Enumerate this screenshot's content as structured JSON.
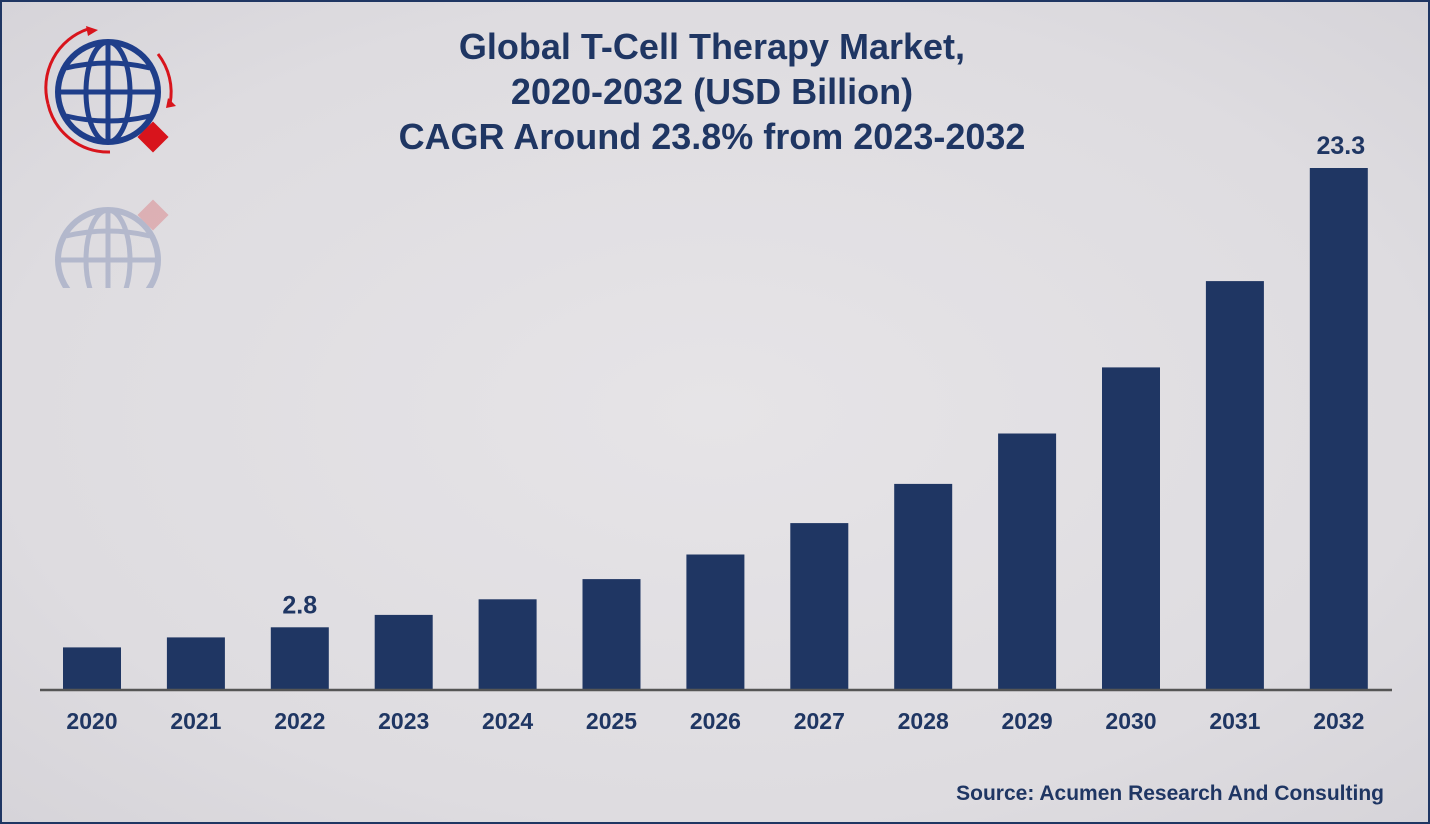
{
  "title_lines": [
    "Global T-Cell Therapy Market,",
    "2020-2032 (USD Billion)",
    "CAGR Around 23.8% from 2023-2032"
  ],
  "source": "Source: Acumen Research And Consulting",
  "logo_icon": "globe-logo-icon",
  "colors": {
    "bar": "#1f3663",
    "text": "#1f3663",
    "axis": "#555555",
    "logo_red": "#d8141c",
    "background": "#e0dee1"
  },
  "chart_data": {
    "type": "bar",
    "categories": [
      "2020",
      "2021",
      "2022",
      "2023",
      "2024",
      "2025",
      "2026",
      "2027",
      "2028",
      "2029",
      "2030",
      "2031",
      "2032"
    ],
    "values": [
      1.9,
      2.35,
      2.8,
      3.35,
      4.05,
      4.95,
      6.05,
      7.45,
      9.2,
      11.45,
      14.4,
      18.25,
      23.3
    ],
    "data_labels": [
      {
        "category": "2022",
        "text": "2.8"
      },
      {
        "category": "2032",
        "text": "23.3"
      }
    ],
    "ylim": [
      0,
      23.3
    ],
    "xlabel": "",
    "ylabel": "",
    "grid": false,
    "legend": "none"
  }
}
